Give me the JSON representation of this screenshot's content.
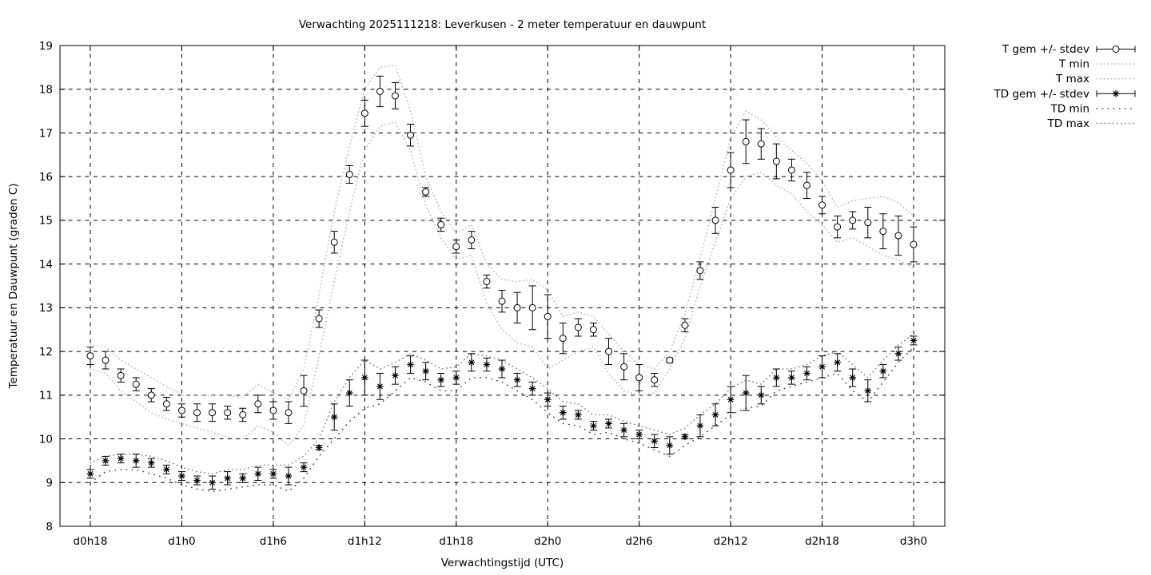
{
  "chart_data": {
    "type": "line",
    "title": "Verwachting 2025111218: Leverkusen - 2 meter temperatuur en dauwpunt",
    "xlabel": "Verwachtingstijd (UTC)",
    "ylabel": "Temperatuur en Dauwpunt (graden C)",
    "ylim": [
      8,
      19
    ],
    "y_ticks": [
      8,
      9,
      10,
      11,
      12,
      13,
      14,
      15,
      16,
      17,
      18,
      19
    ],
    "x_tick_labels": [
      "d0h18",
      "d1h0",
      "d1h6",
      "d1h12",
      "d1h18",
      "d2h0",
      "d2h6",
      "d2h12",
      "d2h18",
      "d3h0"
    ],
    "x_tick_indices": [
      0,
      6,
      12,
      18,
      24,
      30,
      36,
      42,
      48,
      54
    ],
    "n_points": 55,
    "points_per_tick_interval": 6,
    "grid": true,
    "legend_position": "outside-top-right",
    "series": [
      {
        "name": "T gem +/- stdev",
        "style": "errorbars",
        "marker": "circle",
        "color": "#000000",
        "values": [
          11.9,
          11.8,
          11.45,
          11.25,
          11.0,
          10.8,
          10.65,
          10.6,
          10.6,
          10.6,
          10.55,
          10.8,
          10.65,
          10.6,
          11.1,
          12.75,
          14.5,
          16.05,
          17.45,
          17.95,
          17.85,
          16.95,
          15.65,
          14.9,
          14.4,
          14.55,
          13.6,
          13.15,
          13.0,
          13.0,
          12.8,
          12.3,
          12.55,
          12.5,
          12.0,
          11.65,
          11.4,
          11.35,
          11.8,
          12.6,
          13.85,
          15.0,
          16.15,
          16.8,
          16.75,
          16.35,
          16.15,
          15.8,
          15.35,
          14.85,
          15.0,
          14.95,
          14.75,
          14.65,
          14.45
        ],
        "err": [
          0.2,
          0.2,
          0.15,
          0.15,
          0.15,
          0.15,
          0.15,
          0.2,
          0.2,
          0.15,
          0.15,
          0.2,
          0.2,
          0.25,
          0.35,
          0.2,
          0.25,
          0.2,
          0.3,
          0.35,
          0.3,
          0.25,
          0.1,
          0.15,
          0.15,
          0.2,
          0.15,
          0.25,
          0.35,
          0.5,
          0.5,
          0.35,
          0.2,
          0.15,
          0.3,
          0.3,
          0.3,
          0.15,
          0.05,
          0.15,
          0.2,
          0.3,
          0.4,
          0.5,
          0.35,
          0.4,
          0.25,
          0.3,
          0.2,
          0.25,
          0.2,
          0.35,
          0.4,
          0.45,
          0.4
        ]
      },
      {
        "name": "T min",
        "style": "dots",
        "marker": null,
        "color": "#b5b5b5",
        "dash": "0.6,4",
        "values": [
          11.6,
          11.5,
          11.1,
          10.85,
          10.6,
          10.45,
          10.35,
          10.25,
          10.15,
          10.05,
          10.0,
          10.3,
          10.15,
          9.85,
          10.3,
          11.9,
          13.6,
          15.2,
          16.6,
          17.15,
          17.25,
          16.6,
          15.35,
          14.6,
          14.1,
          14.2,
          13.1,
          12.5,
          12.2,
          12.1,
          11.6,
          11.8,
          12.0,
          12.1,
          11.5,
          11.1,
          11.0,
          11.05,
          11.6,
          12.3,
          13.5,
          14.5,
          15.5,
          16.0,
          16.1,
          15.8,
          15.6,
          15.2,
          14.9,
          14.5,
          14.6,
          14.4,
          14.2,
          14.1,
          13.9
        ]
      },
      {
        "name": "T max",
        "style": "dots",
        "marker": null,
        "color": "#b5b5b5",
        "dash": "0.6,4",
        "values": [
          12.15,
          12.1,
          11.8,
          11.6,
          11.4,
          11.2,
          11.0,
          11.0,
          11.0,
          11.0,
          10.95,
          11.25,
          11.05,
          10.9,
          11.6,
          13.3,
          15.2,
          16.7,
          18.0,
          18.5,
          18.55,
          17.5,
          16.0,
          15.2,
          14.7,
          14.9,
          14.0,
          13.65,
          13.6,
          13.65,
          13.4,
          12.8,
          12.9,
          12.8,
          12.4,
          12.0,
          11.7,
          11.6,
          12.0,
          12.85,
          14.15,
          15.5,
          16.9,
          17.5,
          17.3,
          16.9,
          16.6,
          16.3,
          15.9,
          15.3,
          15.45,
          15.5,
          15.55,
          15.4,
          15.1
        ]
      },
      {
        "name": "TD gem +/- stdev",
        "style": "errorbars",
        "marker": "asterisk",
        "color": "#000000",
        "values": [
          9.2,
          9.5,
          9.55,
          9.5,
          9.45,
          9.3,
          9.15,
          9.05,
          9.0,
          9.1,
          9.1,
          9.2,
          9.2,
          9.15,
          9.35,
          9.8,
          10.5,
          11.05,
          11.4,
          11.2,
          11.45,
          11.7,
          11.55,
          11.35,
          11.4,
          11.75,
          11.7,
          11.6,
          11.35,
          11.15,
          10.9,
          10.6,
          10.55,
          10.3,
          10.35,
          10.2,
          10.1,
          9.95,
          9.85,
          10.05,
          10.3,
          10.55,
          10.9,
          11.05,
          11.0,
          11.4,
          11.4,
          11.5,
          11.65,
          11.75,
          11.4,
          11.1,
          11.55,
          11.95,
          12.25
        ],
        "err": [
          0.1,
          0.1,
          0.1,
          0.15,
          0.1,
          0.1,
          0.1,
          0.1,
          0.15,
          0.15,
          0.1,
          0.15,
          0.1,
          0.2,
          0.1,
          0.05,
          0.3,
          0.3,
          0.4,
          0.3,
          0.2,
          0.2,
          0.2,
          0.15,
          0.15,
          0.2,
          0.15,
          0.2,
          0.15,
          0.15,
          0.15,
          0.15,
          0.1,
          0.1,
          0.1,
          0.15,
          0.1,
          0.15,
          0.2,
          0.05,
          0.25,
          0.25,
          0.3,
          0.4,
          0.2,
          0.2,
          0.15,
          0.15,
          0.25,
          0.2,
          0.2,
          0.25,
          0.15,
          0.15,
          0.1
        ]
      },
      {
        "name": "TD min",
        "style": "dots",
        "marker": null,
        "color": "#3a3a3a",
        "dash": "0.6,6.5",
        "values": [
          9.0,
          9.25,
          9.3,
          9.3,
          9.2,
          9.1,
          8.95,
          8.85,
          8.8,
          8.85,
          8.9,
          8.95,
          8.95,
          8.8,
          9.1,
          9.6,
          10.0,
          10.4,
          10.7,
          10.8,
          11.1,
          11.4,
          11.3,
          11.1,
          11.1,
          11.4,
          11.4,
          11.3,
          11.1,
          10.9,
          10.6,
          10.35,
          10.3,
          10.1,
          10.15,
          10.0,
          9.9,
          9.75,
          9.6,
          9.85,
          10.05,
          10.3,
          10.55,
          10.7,
          10.75,
          11.1,
          11.2,
          11.3,
          11.4,
          11.5,
          11.1,
          10.85,
          11.3,
          11.75,
          12.1
        ]
      },
      {
        "name": "TD max",
        "style": "dots",
        "marker": null,
        "color": "#7d7d7d",
        "dash": "0.6,4.5",
        "values": [
          9.45,
          9.6,
          9.65,
          9.65,
          9.6,
          9.5,
          9.35,
          9.25,
          9.2,
          9.3,
          9.3,
          9.4,
          9.4,
          9.4,
          9.6,
          10.0,
          10.85,
          11.4,
          11.8,
          11.6,
          11.75,
          11.95,
          11.8,
          11.6,
          11.65,
          11.95,
          11.9,
          11.8,
          11.6,
          11.4,
          11.15,
          10.85,
          10.8,
          10.55,
          10.55,
          10.4,
          10.3,
          10.2,
          10.1,
          10.25,
          10.55,
          10.8,
          11.15,
          11.35,
          11.25,
          11.6,
          11.6,
          11.7,
          11.9,
          12.0,
          11.7,
          11.4,
          11.8,
          12.15,
          12.4
        ]
      }
    ]
  }
}
